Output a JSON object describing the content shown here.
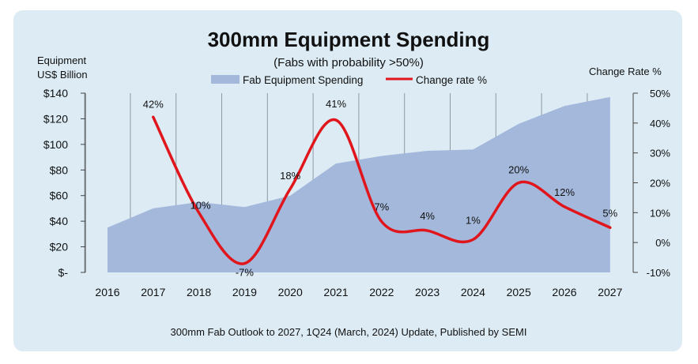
{
  "chart_data": {
    "type": "area",
    "title": "300mm Equipment Spending",
    "subtitle": "(Fabs with probability >50%)",
    "left_axis_title": [
      "Equipment",
      "US$ Billion"
    ],
    "right_axis_title": "Change Rate %",
    "footer": "300mm Fab Outlook to 2027, 1Q24 (March, 2024) Update, Published by SEMI",
    "categories": [
      "2016",
      "2017",
      "2018",
      "2019",
      "2020",
      "2021",
      "2022",
      "2023",
      "2024",
      "2025",
      "2026",
      "2027"
    ],
    "ylim": [
      0,
      140
    ],
    "y_ticks": [
      "$-",
      "$20",
      "$40",
      "$60",
      "$80",
      "$100",
      "$120",
      "$140"
    ],
    "y2lim": [
      -10,
      50
    ],
    "y2_ticks": [
      "-10%",
      "0%",
      "10%",
      "20%",
      "30%",
      "40%",
      "50%"
    ],
    "grid": "vertical",
    "series": [
      {
        "name": "Fab Equipment Spending",
        "type": "area",
        "axis": "left",
        "color": "#a3b8db",
        "values": [
          35,
          50,
          55,
          51,
          60,
          85,
          91,
          95,
          96,
          116,
          130,
          137
        ]
      },
      {
        "name": "Change rate %",
        "type": "line",
        "axis": "right",
        "color": "#e0161c",
        "values": [
          null,
          42,
          10,
          -7,
          18,
          41,
          7,
          4,
          1,
          20,
          12,
          5
        ],
        "labels": [
          "",
          "42%",
          "10%",
          "-7%",
          "18%",
          "41%",
          "7%",
          "4%",
          "1%",
          "20%",
          "12%",
          "5%"
        ]
      }
    ]
  }
}
